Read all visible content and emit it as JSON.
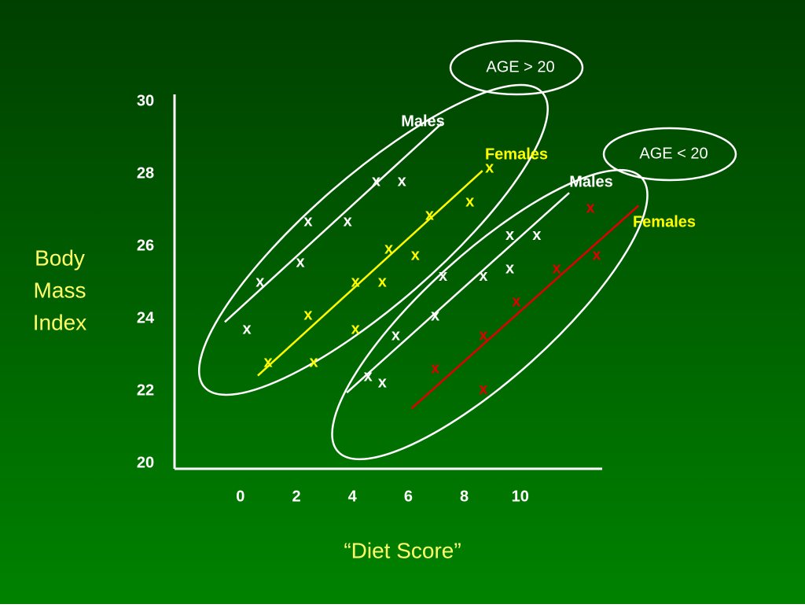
{
  "chart_data": {
    "type": "scatter",
    "marker": "x",
    "y_label": [
      "Body",
      "Mass",
      "Index"
    ],
    "x_label": "“Diet Score”",
    "annotations": [
      "AGE > 20",
      "AGE < 20"
    ],
    "xlim": [
      -2.3,
      12.9
    ],
    "ylim": [
      19.9,
      30.2
    ],
    "xticks": [
      0,
      2,
      4,
      6,
      8,
      10
    ],
    "yticks": [
      20,
      22,
      24,
      26,
      28,
      30
    ],
    "series": [
      {
        "name": "Males",
        "color": "#ffffff",
        "x": [
          0.23,
          0.7,
          2.14,
          2.42,
          3.83,
          4.85,
          5.77
        ],
        "values": [
          23.7,
          25.0,
          25.54,
          26.67,
          26.67,
          27.78,
          27.78
        ],
        "fit_x": [
          -0.56,
          7.18
        ],
        "fit_y": [
          23.91,
          29.39
        ]
      },
      {
        "name": "Females",
        "color": "#ffff00",
        "x": [
          0.99,
          2.62,
          2.42,
          4.11,
          4.11,
          5.07,
          5.3,
          6.25,
          6.76,
          8.2,
          8.9
        ],
        "values": [
          22.78,
          22.78,
          24.09,
          23.7,
          25.0,
          25.0,
          25.91,
          25.74,
          26.85,
          27.22,
          28.15
        ],
        "fit_x": [
          0.62,
          8.65
        ],
        "fit_y": [
          22.43,
          28.09
        ]
      },
      {
        "name": "Males",
        "color": "#ffffff",
        "x": [
          4.56,
          5.07,
          5.55,
          6.96,
          7.24,
          8.68,
          9.63,
          9.63,
          10.59
        ],
        "values": [
          22.39,
          22.22,
          23.52,
          24.07,
          25.17,
          25.17,
          25.37,
          26.3,
          26.3
        ],
        "fit_x": [
          3.8,
          11.75
        ],
        "fit_y": [
          21.96,
          27.48
        ]
      },
      {
        "name": "Females",
        "color": "#e00000",
        "x": [
          6.96,
          8.68,
          8.68,
          9.86,
          11.3,
          12.73,
          12.51
        ],
        "values": [
          22.61,
          22.04,
          23.52,
          24.46,
          25.37,
          25.74,
          27.04
        ],
        "fit_x": [
          6.11,
          14.23
        ],
        "fit_y": [
          21.52,
          27.13
        ]
      }
    ]
  }
}
